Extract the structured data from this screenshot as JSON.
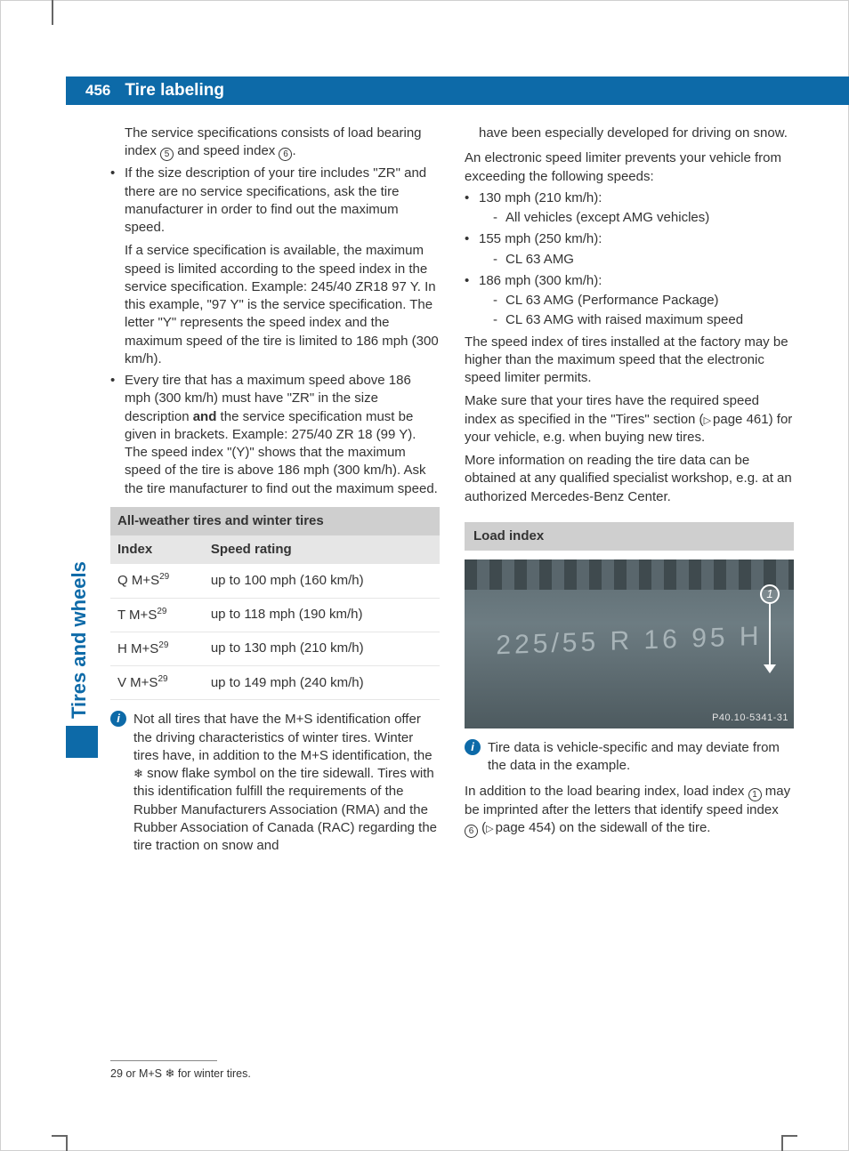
{
  "header": {
    "page_number": "456",
    "title": "Tire labeling"
  },
  "side_tab": "Tires and wheels",
  "col1": {
    "intro": "The service specifications consists of load bearing index",
    "intro2": "and speed index",
    "ref5": "5",
    "ref6": "6",
    "b1a": "If the size description of your tire includes \"ZR\" and there are no service specifications, ask the tire manufacturer in order to find out the maximum speed.",
    "b1b": "If a service specification is available, the maximum speed is limited according to the speed index in the service specification. Example: 245/40 ZR18 97 Y. In this example, \"97 Y\" is the service specification. The letter \"Y\" represents the speed index and the maximum speed of the tire is limited to 186 mph (300 km/h).",
    "b2": "Every tire that has a maximum speed above 186 mph (300 km/h) must have \"ZR\" in the size description ",
    "b2_bold": "and",
    "b2_tail": " the service specification must be given in brackets. Example: 275/40 ZR 18 (99 Y). The speed index \"(Y)\" shows that the maximum speed of the tire is above 186 mph (300 km/h). Ask the tire manufacturer to find out the maximum speed.",
    "table": {
      "title": "All-weather tires and winter tires",
      "h1": "Index",
      "h2": "Speed rating",
      "rows": [
        {
          "idx": "Q M+S",
          "sup": "29",
          "rating": "up to 100 mph (160 km/h)"
        },
        {
          "idx": "T M+S",
          "sup": "29",
          "rating": "up to 118 mph (190 km/h)"
        },
        {
          "idx": "H M+S",
          "sup": "29",
          "rating": "up to 130 mph (210 km/h)"
        },
        {
          "idx": "V M+S",
          "sup": "29",
          "rating": "up to 149 mph (240 km/h)"
        }
      ]
    },
    "info1_a": "Not all tires that have the M+S identification offer the driving characteristics of winter tires. Winter tires have, in addition to the M+S identification, the ",
    "info1_b": " snow flake symbol on the tire sidewall. Tires with this identification fulfill the requirements of the Rubber Manufacturers Association (RMA) and the Rubber Association of Canada (RAC) regarding the tire traction on snow and"
  },
  "col2": {
    "cont": "have been especially developed for driving on snow.",
    "p1": "An electronic speed limiter prevents your vehicle from exceeding the following speeds:",
    "s1": "130 mph (210 km/h):",
    "s1d1": "All vehicles (except AMG vehicles)",
    "s2": "155 mph (250 km/h):",
    "s2d1": "CL 63 AMG",
    "s3": "186 mph (300 km/h):",
    "s3d1": "CL 63 AMG (Performance Package)",
    "s3d2": "CL 63 AMG with raised maximum speed",
    "p2": "The speed index of tires installed at the factory may be higher than the maximum speed that the electronic speed limiter permits.",
    "p3a": "Make sure that your tires have the required speed index as specified in the \"Tires\" section (",
    "p3_ref": "page 461",
    "p3b": ") for your vehicle, e.g. when buying new tires.",
    "p4": "More information on reading the tire data can be obtained at any qualified specialist workshop, e.g. at an authorized Mercedes-Benz Center.",
    "section": "Load index",
    "tire_text": "225/55 R 16 95 H",
    "fig_caption": "P40.10-5341-31",
    "callout1": "1",
    "info2": "Tire data is vehicle-specific and may deviate from the data in the example.",
    "p5a": "In addition to the load bearing index, load index ",
    "ref1": "1",
    "p5b": " may be imprinted after the letters that identify speed index ",
    "ref6": "6",
    "p5c": " (",
    "p5_ref": "page 454",
    "p5d": ") on the sidewall of the tire."
  },
  "footnote": {
    "num": "29",
    "a": " or M+S ",
    "b": " for winter tires."
  },
  "colors": {
    "brand": "#0d6aa8",
    "table_title_bg": "#cfcfcf",
    "table_header_bg": "#e6e6e6"
  }
}
